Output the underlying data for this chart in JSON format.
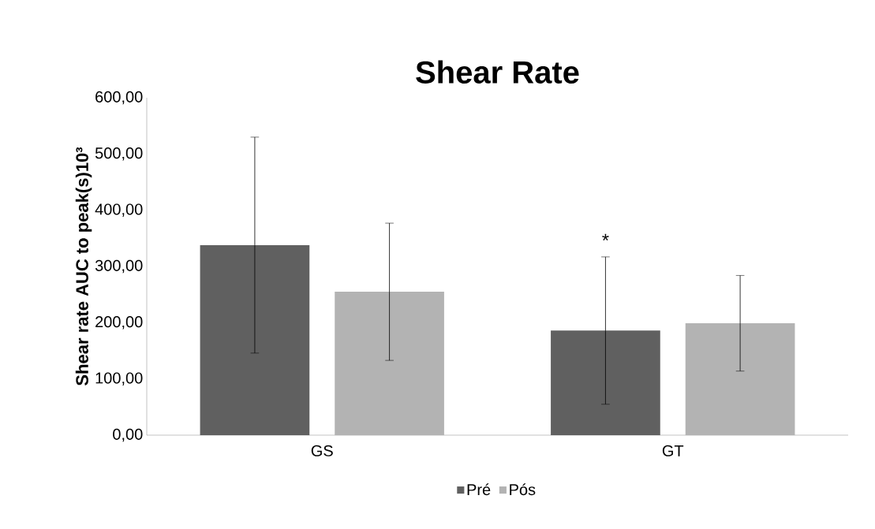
{
  "chart_data": {
    "type": "bar",
    "title": "Shear Rate",
    "ylabel": "Shear rate AUC to peak(s)10³",
    "categories": [
      "GS",
      "GT"
    ],
    "series": [
      {
        "name": "Pré",
        "color": "#606060",
        "values": [
          338,
          186
        ],
        "errors": [
          192,
          131
        ]
      },
      {
        "name": "Pós",
        "color": "#b3b3b3",
        "values": [
          255,
          199
        ],
        "errors": [
          122,
          85
        ]
      }
    ],
    "ylim": [
      0,
      600
    ],
    "yticks": [
      {
        "value": 0,
        "label": "0,00"
      },
      {
        "value": 100,
        "label": "100,00"
      },
      {
        "value": 200,
        "label": "200,00"
      },
      {
        "value": 300,
        "label": "300,00"
      },
      {
        "value": 400,
        "label": "400,00"
      },
      {
        "value": 500,
        "label": "500,00"
      },
      {
        "value": 600,
        "label": "600,00"
      }
    ],
    "annotations": [
      "*"
    ],
    "legend": "bottom",
    "grid": false
  }
}
